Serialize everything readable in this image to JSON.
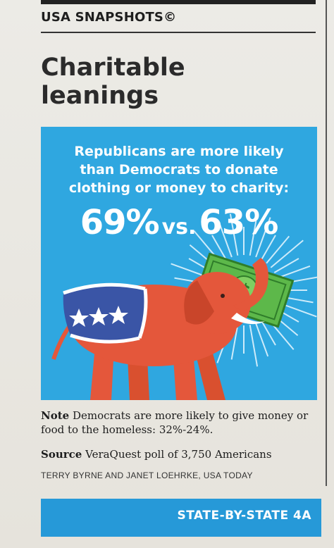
{
  "header": {
    "section_title": "USA SNAPSHOTS©"
  },
  "headline": {
    "line1": "Charitable",
    "line2": "leanings"
  },
  "panel": {
    "lead_lines": [
      "Republicans are more likely",
      "than Democrats to donate",
      "clothing or money to charity:"
    ],
    "left_value": "69%",
    "vs_text": "vs.",
    "right_value": "63%",
    "icons": [
      "republican-elephant-illustration",
      "dollar-bill-icon"
    ]
  },
  "chart_data": {
    "type": "table",
    "categories": [
      "Republicans",
      "Democrats"
    ],
    "values": [
      69,
      63
    ],
    "unit": "%"
  },
  "note": {
    "label": "Note",
    "text": "Democrats are more likely to give money or food to the homeless: 32%-24%."
  },
  "source": {
    "label": "Source",
    "text": "VeraQuest poll of 3,750 Americans"
  },
  "credit": "TERRY BYRNE AND JANET LOEHRKE, USA TODAY",
  "footer": {
    "label": "STATE-BY-STATE 4A"
  },
  "colors": {
    "panel_blue": "#2fa7e0",
    "elephant_red": "#e4573b",
    "blanket_blue": "#3a55a6",
    "money_green": "#5db84a",
    "footer_blue": "#2699d8"
  }
}
